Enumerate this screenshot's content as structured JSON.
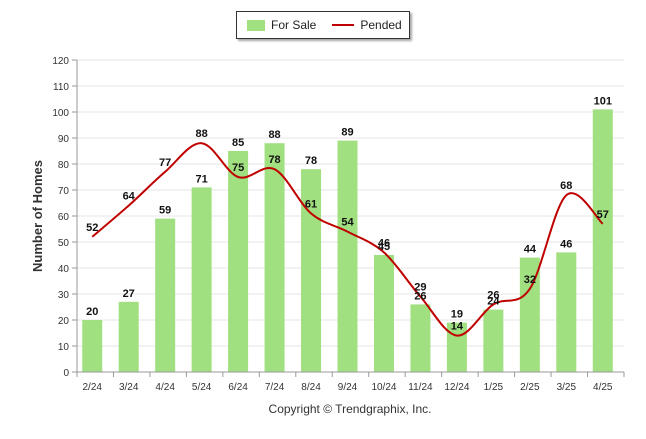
{
  "chart_data": {
    "type": "bar",
    "categories": [
      "2/24",
      "3/24",
      "4/24",
      "5/24",
      "6/24",
      "7/24",
      "8/24",
      "9/24",
      "10/24",
      "11/24",
      "12/24",
      "1/25",
      "2/25",
      "3/25",
      "4/25"
    ],
    "series": [
      {
        "name": "For Sale",
        "kind": "bar",
        "color": "#a0e080",
        "values": [
          20,
          27,
          59,
          71,
          85,
          88,
          78,
          89,
          45,
          26,
          19,
          24,
          44,
          46,
          101
        ]
      },
      {
        "name": "Pended",
        "kind": "line",
        "color": "#c00000",
        "values": [
          52,
          64,
          77,
          88,
          75,
          78,
          61,
          54,
          46,
          29,
          14,
          26,
          32,
          68,
          57
        ]
      }
    ],
    "ylabel": "Number of Homes",
    "xlabel": "",
    "ylim": [
      0,
      120
    ],
    "yticks": [
      0,
      10,
      20,
      30,
      40,
      50,
      60,
      70,
      80,
      90,
      100,
      110,
      120
    ],
    "grid": true,
    "legend_position": "top-center"
  },
  "footer": {
    "copyright": "Copyright © Trendgraphix, Inc."
  }
}
